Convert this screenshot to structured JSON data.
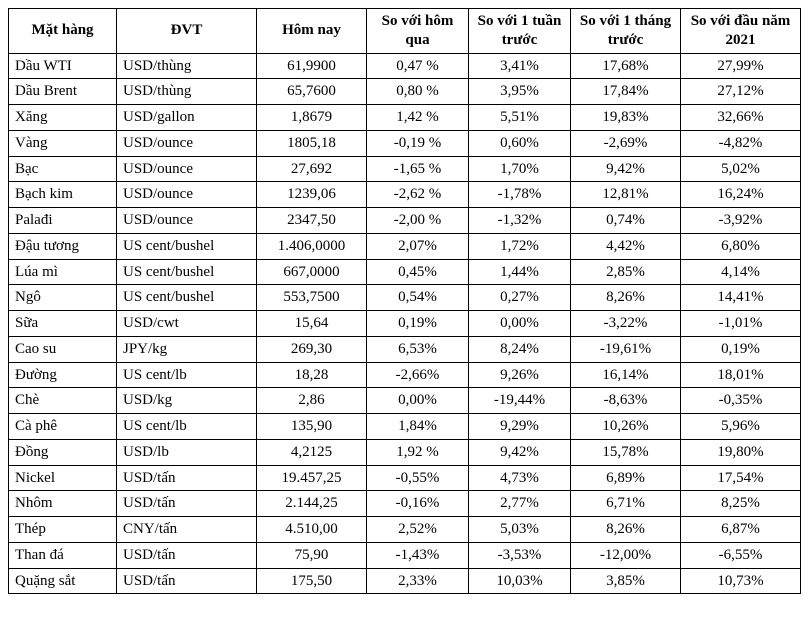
{
  "table": {
    "columns": [
      {
        "label": "Mặt hàng",
        "align": "center"
      },
      {
        "label": "ĐVT",
        "align": "center"
      },
      {
        "label": "Hôm nay",
        "align": "center"
      },
      {
        "label": "So với hôm qua",
        "align": "center"
      },
      {
        "label": "So với 1 tuần trước",
        "align": "center"
      },
      {
        "label": "So với 1 tháng trước",
        "align": "center"
      },
      {
        "label": "So với đầu năm 2021",
        "align": "center"
      }
    ],
    "rows": [
      {
        "name": "Dầu WTI",
        "unit": "USD/thùng",
        "today": "61,9900",
        "d1": "0,47 %",
        "w1": "3,41%",
        "m1": "17,68%",
        "ytd": "27,99%"
      },
      {
        "name": "Dầu Brent",
        "unit": "USD/thùng",
        "today": "65,7600",
        "d1": "0,80 %",
        "w1": "3,95%",
        "m1": "17,84%",
        "ytd": "27,12%"
      },
      {
        "name": "Xăng",
        "unit": "USD/gallon",
        "today": "1,8679",
        "d1": "1,42 %",
        "w1": "5,51%",
        "m1": "19,83%",
        "ytd": "32,66%"
      },
      {
        "name": "Vàng",
        "unit": "USD/ounce",
        "today": "1805,18",
        "d1": "-0,19 %",
        "w1": "0,60%",
        "m1": "-2,69%",
        "ytd": "-4,82%"
      },
      {
        "name": "Bạc",
        "unit": "USD/ounce",
        "today": "27,692",
        "d1": "-1,65 %",
        "w1": "1,70%",
        "m1": "9,42%",
        "ytd": "5,02%"
      },
      {
        "name": "Bạch kim",
        "unit": "USD/ounce",
        "today": "1239,06",
        "d1": "-2,62 %",
        "w1": "-1,78%",
        "m1": "12,81%",
        "ytd": "16,24%"
      },
      {
        "name": "Palađi",
        "unit": "USD/ounce",
        "today": "2347,50",
        "d1": "-2,00 %",
        "w1": "-1,32%",
        "m1": "0,74%",
        "ytd": "-3,92%"
      },
      {
        "name": "Đậu tương",
        "unit": "US cent/bushel",
        "today": "1.406,0000",
        "d1": "2,07%",
        "w1": "1,72%",
        "m1": "4,42%",
        "ytd": "6,80%"
      },
      {
        "name": "Lúa mì",
        "unit": "US cent/bushel",
        "today": "667,0000",
        "d1": "0,45%",
        "w1": "1,44%",
        "m1": "2,85%",
        "ytd": "4,14%"
      },
      {
        "name": "Ngô",
        "unit": "US cent/bushel",
        "today": "553,7500",
        "d1": "0,54%",
        "w1": "0,27%",
        "m1": "8,26%",
        "ytd": "14,41%"
      },
      {
        "name": "Sữa",
        "unit": "USD/cwt",
        "today": "15,64",
        "d1": "0,19%",
        "w1": "0,00%",
        "m1": "-3,22%",
        "ytd": "-1,01%"
      },
      {
        "name": "Cao su",
        "unit": "JPY/kg",
        "today": "269,30",
        "d1": "6,53%",
        "w1": "8,24%",
        "m1": "-19,61%",
        "ytd": "0,19%"
      },
      {
        "name": "Đường",
        "unit": "US cent/lb",
        "today": "18,28",
        "d1": "-2,66%",
        "w1": "9,26%",
        "m1": "16,14%",
        "ytd": "18,01%"
      },
      {
        "name": "Chè",
        "unit": "USD/kg",
        "today": "2,86",
        "d1": "0,00%",
        "w1": "-19,44%",
        "m1": "-8,63%",
        "ytd": "-0,35%"
      },
      {
        "name": "Cà phê",
        "unit": "US cent/lb",
        "today": "135,90",
        "d1": "1,84%",
        "w1": "9,29%",
        "m1": "10,26%",
        "ytd": "5,96%"
      },
      {
        "name": "Đồng",
        "unit": "USD/lb",
        "today": "4,2125",
        "d1": "1,92 %",
        "w1": "9,42%",
        "m1": "15,78%",
        "ytd": "19,80%"
      },
      {
        "name": "Nickel",
        "unit": "USD/tấn",
        "today": "19.457,25",
        "d1": "-0,55%",
        "w1": "4,73%",
        "m1": "6,89%",
        "ytd": "17,54%"
      },
      {
        "name": "Nhôm",
        "unit": "USD/tấn",
        "today": "2.144,25",
        "d1": "-0,16%",
        "w1": "2,77%",
        "m1": "6,71%",
        "ytd": "8,25%"
      },
      {
        "name": "Thép",
        "unit": "CNY/tấn",
        "today": "4.510,00",
        "d1": "2,52%",
        "w1": "5,03%",
        "m1": "8,26%",
        "ytd": "6,87%"
      },
      {
        "name": "Than đá",
        "unit": "USD/tấn",
        "today": "75,90",
        "d1": "-1,43%",
        "w1": "-3,53%",
        "m1": "-12,00%",
        "ytd": "-6,55%"
      },
      {
        "name": "Quặng sắt",
        "unit": "USD/tấn",
        "today": "175,50",
        "d1": "2,33%",
        "w1": "10,03%",
        "m1": "3,85%",
        "ytd": "10,73%"
      }
    ]
  }
}
